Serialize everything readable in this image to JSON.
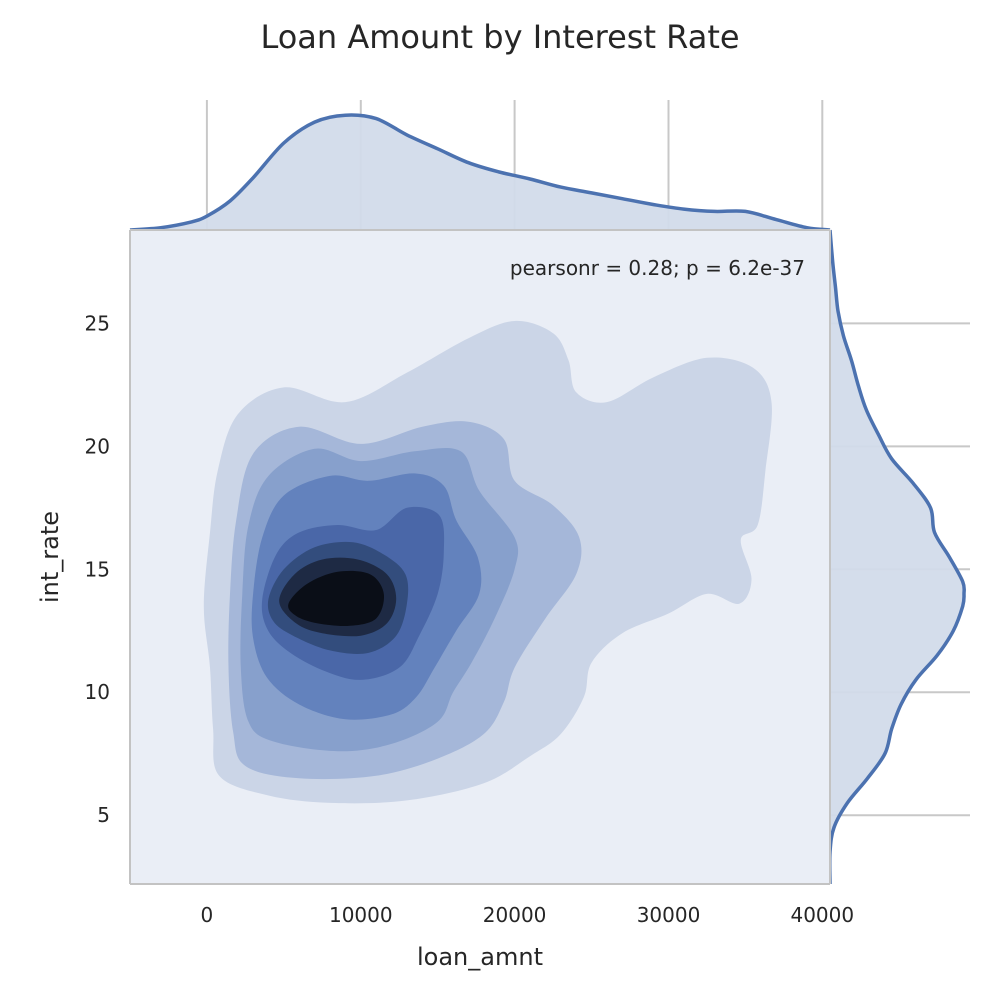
{
  "chart_data": {
    "type": "kde-joint",
    "title": "Loan Amount by Interest Rate",
    "xlabel": "loan_amnt",
    "ylabel": "int_rate",
    "annotation": "pearsonr = 0.28; p = 6.2e-37",
    "xlim": [
      -5000,
      40500
    ],
    "ylim": [
      2.2,
      28.8
    ],
    "x_ticks": [
      0,
      10000,
      20000,
      30000,
      40000
    ],
    "x_tick_labels": [
      "0",
      "10000",
      "20000",
      "30000",
      "40000"
    ],
    "y_ticks": [
      5,
      10,
      15,
      20,
      25
    ],
    "y_tick_labels": [
      "5",
      "10",
      "15",
      "20",
      "25"
    ],
    "joint_density": {
      "levels": 8,
      "mode": [
        9500,
        13.8
      ],
      "contours": [
        {
          "level": 1,
          "color": "#cbd5e7",
          "outline": [
            [
              -200,
              13.5
            ],
            [
              200,
              16.5
            ],
            [
              700,
              19.0
            ],
            [
              2000,
              21.3
            ],
            [
              5000,
              22.4
            ],
            [
              9000,
              21.8
            ],
            [
              13000,
              23.0
            ],
            [
              17000,
              24.4
            ],
            [
              20000,
              25.1
            ],
            [
              22500,
              24.6
            ],
            [
              23500,
              23.5
            ],
            [
              24000,
              22.2
            ],
            [
              26000,
              21.8
            ],
            [
              29000,
              22.8
            ],
            [
              32500,
              23.6
            ],
            [
              35500,
              23.2
            ],
            [
              36700,
              21.8
            ],
            [
              36300,
              19.0
            ],
            [
              35800,
              16.8
            ],
            [
              34700,
              16.2
            ],
            [
              35400,
              14.6
            ],
            [
              34600,
              13.6
            ],
            [
              32500,
              14.0
            ],
            [
              30000,
              13.2
            ],
            [
              27000,
              12.4
            ],
            [
              25000,
              11.2
            ],
            [
              24500,
              9.8
            ],
            [
              23000,
              8.3
            ],
            [
              21000,
              7.4
            ],
            [
              18000,
              6.3
            ],
            [
              13000,
              5.6
            ],
            [
              8000,
              5.5
            ],
            [
              4000,
              5.8
            ],
            [
              800,
              6.6
            ],
            [
              400,
              8.5
            ],
            [
              200,
              11.0
            ]
          ]
        },
        {
          "level": 2,
          "color": "#a5b7d9",
          "outline": [
            [
              1500,
              14.0
            ],
            [
              1900,
              17.0
            ],
            [
              3000,
              19.7
            ],
            [
              6000,
              20.8
            ],
            [
              10000,
              20.1
            ],
            [
              14000,
              20.8
            ],
            [
              17000,
              21.0
            ],
            [
              19300,
              20.3
            ],
            [
              20000,
              18.6
            ],
            [
              22500,
              17.6
            ],
            [
              24200,
              16.3
            ],
            [
              24000,
              14.8
            ],
            [
              22000,
              13.0
            ],
            [
              20000,
              11.0
            ],
            [
              19300,
              9.6
            ],
            [
              18000,
              8.3
            ],
            [
              15000,
              7.3
            ],
            [
              11000,
              6.6
            ],
            [
              6000,
              6.5
            ],
            [
              2500,
              7.0
            ],
            [
              1700,
              8.4
            ],
            [
              1400,
              11.0
            ]
          ]
        },
        {
          "level": 3,
          "color": "#87a0cc",
          "outline": [
            [
              2300,
              14.0
            ],
            [
              2700,
              16.8
            ],
            [
              4000,
              18.8
            ],
            [
              7000,
              19.9
            ],
            [
              10000,
              19.4
            ],
            [
              13500,
              19.8
            ],
            [
              16500,
              19.8
            ],
            [
              17700,
              18.2
            ],
            [
              20000,
              16.3
            ],
            [
              20000,
              15.0
            ],
            [
              18700,
              13.0
            ],
            [
              17200,
              11.2
            ],
            [
              16000,
              10.0
            ],
            [
              15000,
              8.8
            ],
            [
              12000,
              7.9
            ],
            [
              8500,
              7.6
            ],
            [
              4300,
              8.0
            ],
            [
              2700,
              8.8
            ],
            [
              2200,
              11.0
            ]
          ]
        },
        {
          "level": 4,
          "color": "#6382bd",
          "outline": [
            [
              3000,
              14.0
            ],
            [
              3600,
              16.3
            ],
            [
              5000,
              18.0
            ],
            [
              8000,
              18.8
            ],
            [
              10500,
              18.6
            ],
            [
              13500,
              18.9
            ],
            [
              15400,
              18.4
            ],
            [
              16200,
              17.0
            ],
            [
              17600,
              15.5
            ],
            [
              17700,
              14.0
            ],
            [
              16200,
              12.5
            ],
            [
              14800,
              11.0
            ],
            [
              13600,
              9.8
            ],
            [
              12000,
              9.1
            ],
            [
              9000,
              8.9
            ],
            [
              6000,
              9.5
            ],
            [
              3900,
              10.6
            ],
            [
              3000,
              12.2
            ]
          ]
        },
        {
          "level": 5,
          "color": "#4a67a8",
          "outline": [
            [
              3600,
              13.8
            ],
            [
              4500,
              15.6
            ],
            [
              6000,
              16.5
            ],
            [
              8500,
              16.8
            ],
            [
              11000,
              16.6
            ],
            [
              13000,
              17.5
            ],
            [
              15100,
              17.2
            ],
            [
              15400,
              15.7
            ],
            [
              15000,
              14.0
            ],
            [
              13800,
              12.3
            ],
            [
              12500,
              11.0
            ],
            [
              10000,
              10.5
            ],
            [
              7500,
              10.9
            ],
            [
              5200,
              11.7
            ],
            [
              3900,
              12.6
            ]
          ]
        },
        {
          "level": 6,
          "color": "#334d7d",
          "outline": [
            [
              4000,
              13.8
            ],
            [
              5000,
              15.0
            ],
            [
              7000,
              15.9
            ],
            [
              9500,
              16.1
            ],
            [
              11500,
              15.6
            ],
            [
              12900,
              14.8
            ],
            [
              13000,
              13.6
            ],
            [
              12300,
              12.3
            ],
            [
              10500,
              11.6
            ],
            [
              8000,
              11.7
            ],
            [
              5600,
              12.3
            ],
            [
              4300,
              12.9
            ]
          ]
        },
        {
          "level": 7,
          "color": "#1e2a44",
          "outline": [
            [
              4700,
              13.7
            ],
            [
              5700,
              14.8
            ],
            [
              7500,
              15.4
            ],
            [
              9800,
              15.4
            ],
            [
              11700,
              14.8
            ],
            [
              12300,
              13.8
            ],
            [
              11700,
              12.8
            ],
            [
              10000,
              12.3
            ],
            [
              7500,
              12.4
            ],
            [
              5800,
              12.8
            ]
          ]
        },
        {
          "level": 8,
          "color": "#0a0e17",
          "outline": [
            [
              5300,
              13.6
            ],
            [
              6500,
              14.4
            ],
            [
              8500,
              14.9
            ],
            [
              10600,
              14.8
            ],
            [
              11500,
              14.0
            ],
            [
              11000,
              13.0
            ],
            [
              9300,
              12.7
            ],
            [
              7200,
              12.8
            ],
            [
              5800,
              13.1
            ]
          ]
        }
      ]
    },
    "marginal_x": {
      "x": [
        -5000,
        -3000,
        -1000,
        0,
        1500,
        3000,
        5000,
        7000,
        9000,
        11000,
        13000,
        15000,
        17000,
        19000,
        21000,
        23000,
        25000,
        27000,
        29000,
        31000,
        33000,
        35000,
        37000,
        39000,
        40500
      ],
      "density": [
        0.0,
        0.02,
        0.07,
        0.12,
        0.25,
        0.45,
        0.75,
        0.93,
        0.99,
        0.96,
        0.82,
        0.7,
        0.58,
        0.5,
        0.44,
        0.37,
        0.32,
        0.27,
        0.22,
        0.18,
        0.16,
        0.16,
        0.09,
        0.02,
        0.0
      ]
    },
    "marginal_y": {
      "y": [
        2.2,
        3.5,
        4.5,
        5.5,
        6.5,
        7.5,
        8.5,
        9.5,
        10.5,
        11.5,
        12.5,
        13.5,
        14.0,
        14.5,
        15.5,
        16.5,
        17.5,
        18.5,
        19.5,
        20.5,
        21.5,
        22.5,
        23.5,
        24.5,
        25.5,
        26.5,
        27.5,
        28.8
      ],
      "density": [
        0.0,
        0.0,
        0.03,
        0.13,
        0.28,
        0.41,
        0.46,
        0.53,
        0.64,
        0.8,
        0.92,
        0.99,
        1.0,
        0.99,
        0.89,
        0.78,
        0.75,
        0.62,
        0.46,
        0.36,
        0.27,
        0.21,
        0.16,
        0.1,
        0.06,
        0.04,
        0.02,
        0.0
      ]
    },
    "grid": true,
    "line_color": "#4c72b0",
    "fill_color": "#d2dbea",
    "plot_background": "#eaeef6"
  }
}
